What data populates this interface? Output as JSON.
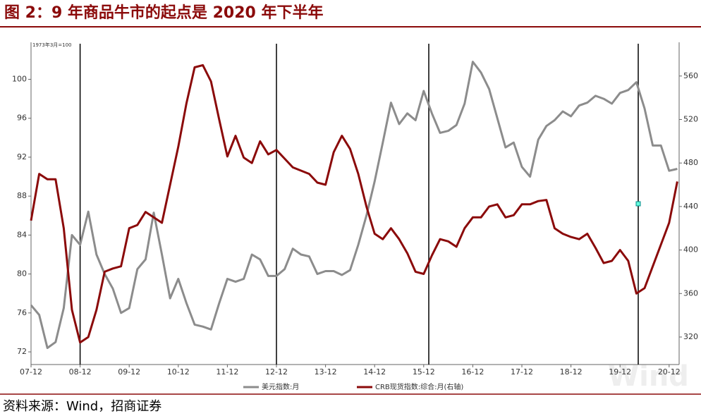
{
  "chart_data": {
    "type": "line",
    "title": "图 2：9 年商品牛市的起点是 2020 年下半年",
    "y_note": "1973年3月=100",
    "source": "资料来源：Wind，招商证券",
    "watermark": "Wind",
    "categories": [
      "07-12",
      null,
      null,
      null,
      null,
      null,
      "08-12",
      null,
      null,
      null,
      null,
      null,
      "09-12",
      null,
      null,
      null,
      null,
      null,
      "10-12",
      null,
      null,
      null,
      null,
      null,
      "11-12",
      null,
      null,
      null,
      null,
      null,
      "12-12",
      null,
      null,
      null,
      null,
      null,
      "13-12",
      null,
      null,
      null,
      null,
      null,
      "14-12",
      null,
      null,
      null,
      null,
      null,
      "15-12",
      null,
      null,
      null,
      null,
      null,
      "16-12",
      null,
      null,
      null,
      null,
      null,
      "17-12",
      null,
      null,
      null,
      null,
      null,
      "18-12",
      null,
      null,
      null,
      null,
      null,
      "19-12",
      null,
      null,
      null,
      null,
      null,
      "20-12",
      null
    ],
    "series": [
      {
        "name": "美元指数:月",
        "color": "#8c8c8c",
        "axis": "y",
        "values": [
          76.8,
          75.8,
          72.4,
          73.0,
          76.5,
          84.0,
          83.0,
          86.4,
          82.0,
          80.0,
          78.5,
          76.0,
          76.5,
          80.5,
          81.5,
          86.3,
          82.0,
          77.5,
          79.5,
          77.0,
          74.8,
          74.6,
          74.3,
          77.0,
          79.5,
          79.2,
          79.5,
          82.0,
          81.5,
          79.8,
          79.8,
          80.5,
          82.6,
          82.0,
          81.8,
          80.0,
          80.3,
          80.3,
          79.9,
          80.4,
          83.0,
          86.0,
          89.5,
          93.5,
          97.6,
          95.4,
          96.5,
          95.8,
          98.8,
          96.5,
          94.5,
          94.7,
          95.3,
          97.5,
          101.8,
          100.7,
          99.0,
          96.0,
          93.0,
          93.5,
          91.0,
          90.0,
          93.8,
          95.2,
          95.8,
          96.7,
          96.2,
          97.3,
          97.6,
          98.3,
          98.0,
          97.5,
          98.6,
          98.9,
          99.7,
          97.0,
          93.2,
          93.2,
          90.6,
          90.8
        ]
      },
      {
        "name": "CRB现货指数:综合:月(右轴)",
        "color": "#8b0a0a",
        "axis": "y2",
        "values": [
          427,
          470,
          465,
          465,
          420,
          345,
          315,
          320,
          345,
          380,
          383,
          385,
          420,
          423,
          435,
          430,
          425,
          460,
          495,
          535,
          568,
          570,
          555,
          520,
          486,
          505,
          485,
          480,
          500,
          488,
          492,
          484,
          476,
          473,
          470,
          462,
          460,
          490,
          505,
          493,
          470,
          440,
          415,
          410,
          420,
          410,
          397,
          380,
          378,
          395,
          410,
          408,
          403,
          420,
          430,
          430,
          440,
          442,
          430,
          432,
          442,
          442,
          445,
          446,
          420,
          415,
          412,
          410,
          415,
          402,
          388,
          390,
          400,
          390,
          360,
          365,
          385,
          405,
          425,
          463
        ]
      }
    ],
    "ylim": [
      70.7,
      103.8
    ],
    "yticks": [
      72,
      76,
      80,
      84,
      88,
      92,
      96,
      100
    ],
    "y2lim": [
      294.7,
      591
    ],
    "y2ticks": [
      320,
      360,
      400,
      440,
      480,
      520,
      560
    ]
  }
}
